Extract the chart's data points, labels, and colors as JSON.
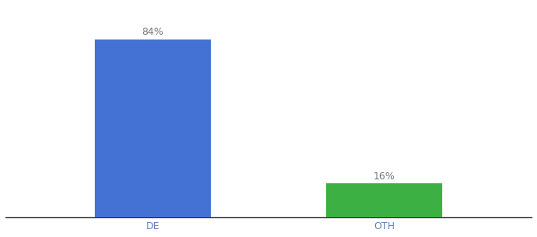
{
  "categories": [
    "DE",
    "OTH"
  ],
  "values": [
    84,
    16
  ],
  "bar_colors": [
    "#4472d4",
    "#3cb043"
  ],
  "bar_labels": [
    "84%",
    "16%"
  ],
  "background_color": "#ffffff",
  "label_color": "#777777",
  "label_fontsize": 9,
  "tick_label_color": "#6080c0",
  "tick_label_fontsize": 9,
  "ylim": [
    0,
    100
  ],
  "bar_width": 0.22,
  "x_positions": [
    0.28,
    0.72
  ],
  "xlim": [
    0.0,
    1.0
  ]
}
